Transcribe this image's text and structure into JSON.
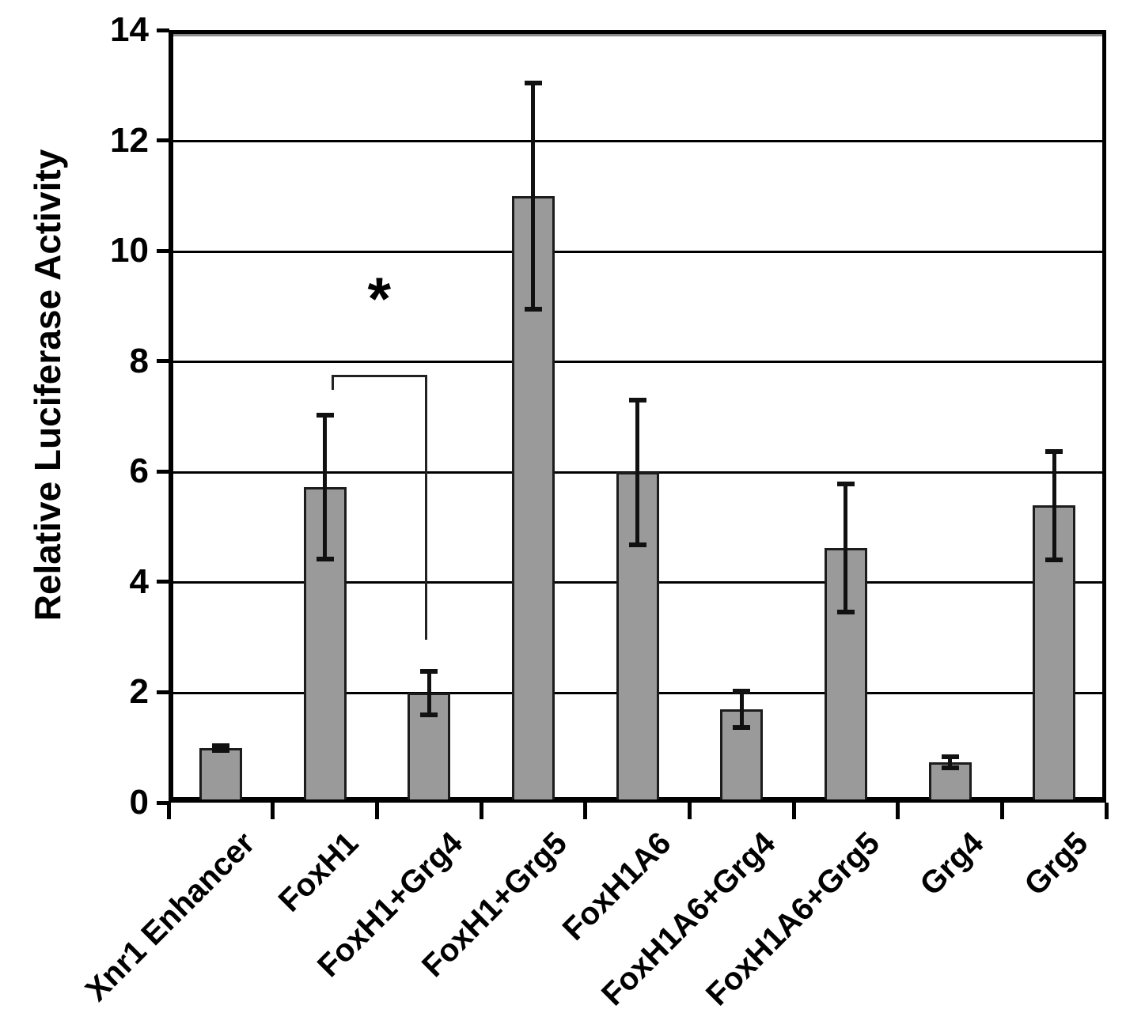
{
  "chart_data": {
    "type": "bar",
    "title": "",
    "ylabel": "Relative Luciferase Activity",
    "xlabel": "",
    "ylim": [
      0,
      14
    ],
    "yticks": [
      0,
      2,
      4,
      6,
      8,
      10,
      12,
      14
    ],
    "grid": "horizontal",
    "legend": "none",
    "bar_fill": "#9a9a9a",
    "bar_border": "#1c1c1c",
    "axis_color": "#000000",
    "background": "#ffffff",
    "categories": [
      "Xnr1 Enhancer",
      "FoxH1",
      "FoxH1+Grg4",
      "FoxH1+Grg5",
      "FoxH1A6",
      "FoxH1A6+Grg4",
      "FoxH1A6+Grg5",
      "Grg4",
      "Grg5"
    ],
    "values": [
      1.0,
      5.73,
      2.0,
      11.0,
      6.0,
      1.7,
      4.63,
      0.75,
      5.4
    ],
    "errors": [
      0.04,
      1.3,
      0.4,
      2.05,
      1.31,
      0.33,
      1.16,
      0.1,
      0.98
    ],
    "significance": {
      "symbol": "*",
      "between": [
        "FoxH1",
        "FoxH1+Grg4"
      ],
      "bracket_top": 7.76,
      "bracket_left_tick_to": 7.5,
      "bracket_right_drop_to": 2.96,
      "symbol_y": 9.27
    }
  }
}
